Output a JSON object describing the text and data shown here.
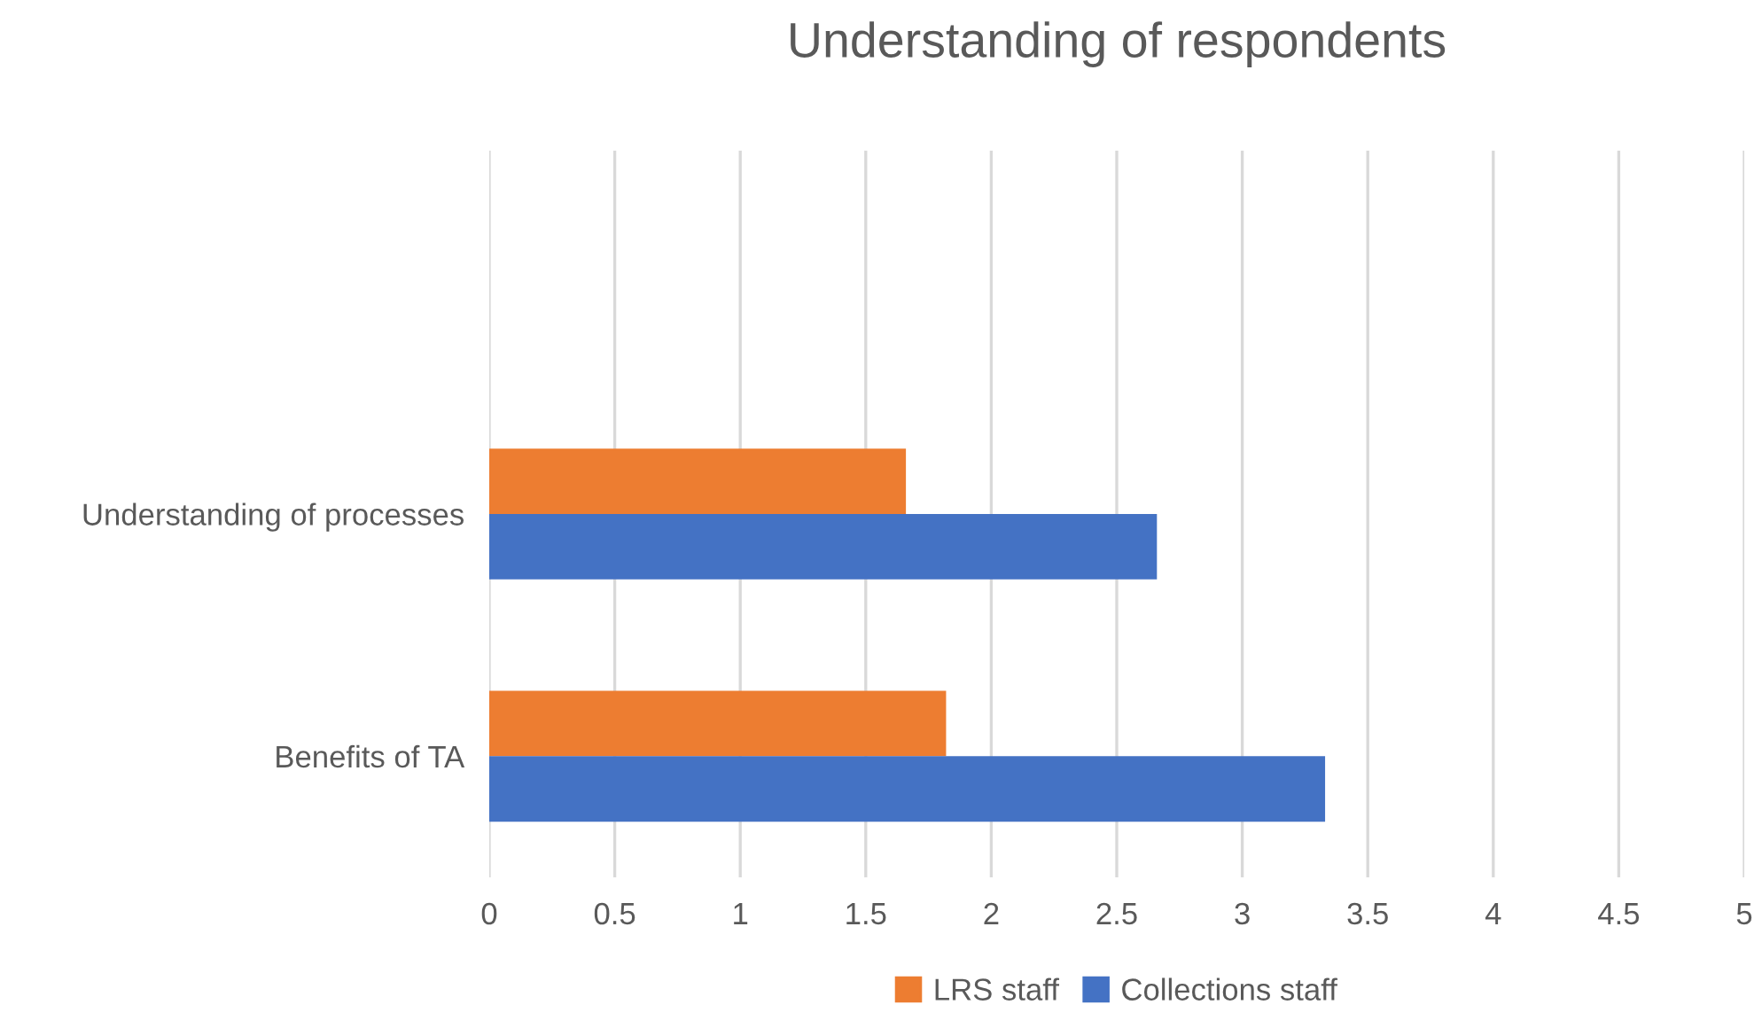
{
  "chart_data": {
    "type": "bar",
    "orientation": "horizontal",
    "title": "Understanding of respondents",
    "categories": [
      null,
      "Understanding of processes",
      "Benefits of TA"
    ],
    "series": [
      {
        "name": "LRS staff",
        "color": "#ed7d31",
        "values": [
          null,
          1.66,
          1.82
        ]
      },
      {
        "name": "Collections staff",
        "color": "#4472c4",
        "values": [
          null,
          2.66,
          3.33
        ]
      }
    ],
    "xlim": [
      0,
      5
    ],
    "xticks": [
      0,
      0.5,
      1,
      1.5,
      2,
      2.5,
      3,
      3.5,
      4,
      4.5,
      5
    ],
    "grid": "x",
    "legend": "bottom"
  }
}
